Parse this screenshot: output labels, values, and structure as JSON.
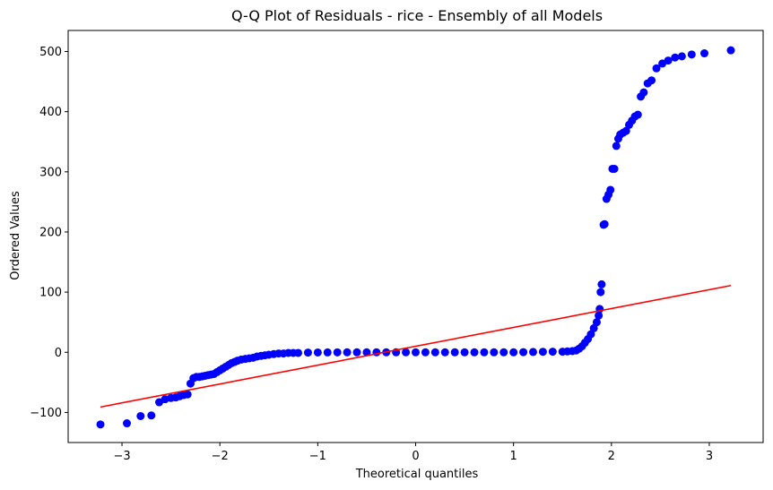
{
  "chart_data": {
    "type": "scatter",
    "title": "Q-Q Plot of Residuals - rice  - Ensembly of all Models",
    "xlabel": "Theoretical quantiles",
    "ylabel": "Ordered Values",
    "xlim": [
      -3.55,
      3.55
    ],
    "ylim": [
      -150,
      535
    ],
    "xticks": [
      -3,
      -2,
      -1,
      0,
      1,
      2,
      3
    ],
    "xtick_labels": [
      "−3",
      "−2",
      "−1",
      "0",
      "1",
      "2",
      "3"
    ],
    "yticks": [
      -100,
      0,
      100,
      200,
      300,
      400,
      500
    ],
    "ytick_labels": [
      "−100",
      "0",
      "100",
      "200",
      "300",
      "400",
      "500"
    ],
    "grid": false,
    "legend": false,
    "colors": {
      "points": "#0000ff",
      "fit_line": "#ff0000"
    },
    "series": [
      {
        "type": "scatter",
        "points": [
          [
            -3.22,
            -120
          ],
          [
            -2.95,
            -118
          ],
          [
            -2.81,
            -106
          ],
          [
            -2.7,
            -105
          ],
          [
            -2.62,
            -83
          ],
          [
            -2.56,
            -78
          ],
          [
            -2.5,
            -76
          ],
          [
            -2.45,
            -75
          ],
          [
            -2.41,
            -73
          ],
          [
            -2.37,
            -71
          ],
          [
            -2.33,
            -70
          ],
          [
            -2.3,
            -52
          ],
          [
            -2.27,
            -43
          ],
          [
            -2.24,
            -41
          ],
          [
            -2.21,
            -41
          ],
          [
            -2.18,
            -40
          ],
          [
            -2.15,
            -39
          ],
          [
            -2.12,
            -38
          ],
          [
            -2.09,
            -37
          ],
          [
            -2.06,
            -36
          ],
          [
            -2.03,
            -33
          ],
          [
            -2.0,
            -30
          ],
          [
            -1.97,
            -27
          ],
          [
            -1.94,
            -24
          ],
          [
            -1.91,
            -21
          ],
          [
            -1.88,
            -18
          ],
          [
            -1.85,
            -16
          ],
          [
            -1.82,
            -14
          ],
          [
            -1.78,
            -12
          ],
          [
            -1.74,
            -11
          ],
          [
            -1.7,
            -10
          ],
          [
            -1.66,
            -9
          ],
          [
            -1.62,
            -7
          ],
          [
            -1.58,
            -6
          ],
          [
            -1.54,
            -5
          ],
          [
            -1.5,
            -4
          ],
          [
            -1.45,
            -3
          ],
          [
            -1.4,
            -2
          ],
          [
            -1.35,
            -2
          ],
          [
            -1.3,
            -1
          ],
          [
            -1.25,
            -1
          ],
          [
            -1.2,
            -1
          ],
          [
            -1.1,
            -0.5
          ],
          [
            -1.0,
            -0.3
          ],
          [
            -0.9,
            -0.2
          ],
          [
            -0.8,
            -0.1
          ],
          [
            -0.7,
            0
          ],
          [
            -0.6,
            0
          ],
          [
            -0.5,
            0
          ],
          [
            -0.4,
            0
          ],
          [
            -0.3,
            0
          ],
          [
            -0.2,
            0
          ],
          [
            -0.1,
            0
          ],
          [
            0,
            0
          ],
          [
            0.1,
            0
          ],
          [
            0.2,
            0
          ],
          [
            0.3,
            0
          ],
          [
            0.4,
            0
          ],
          [
            0.5,
            0
          ],
          [
            0.6,
            0
          ],
          [
            0.7,
            0
          ],
          [
            0.8,
            0
          ],
          [
            0.9,
            0
          ],
          [
            1.0,
            0
          ],
          [
            1.1,
            0.3
          ],
          [
            1.2,
            0.5
          ],
          [
            1.3,
            0.8
          ],
          [
            1.4,
            1
          ],
          [
            1.5,
            1
          ],
          [
            1.55,
            1.5
          ],
          [
            1.6,
            2
          ],
          [
            1.64,
            3
          ],
          [
            1.67,
            6
          ],
          [
            1.7,
            10
          ],
          [
            1.73,
            16
          ],
          [
            1.76,
            22
          ],
          [
            1.79,
            30
          ],
          [
            1.82,
            40
          ],
          [
            1.85,
            50
          ],
          [
            1.87,
            61
          ],
          [
            1.88,
            72
          ],
          [
            1.89,
            100
          ],
          [
            1.9,
            113
          ],
          [
            1.92,
            212
          ],
          [
            1.93,
            213
          ],
          [
            1.95,
            255
          ],
          [
            1.97,
            262
          ],
          [
            1.99,
            270
          ],
          [
            2.01,
            305
          ],
          [
            2.03,
            305
          ],
          [
            2.05,
            343
          ],
          [
            2.07,
            355
          ],
          [
            2.09,
            362
          ],
          [
            2.12,
            365
          ],
          [
            2.15,
            368
          ],
          [
            2.18,
            378
          ],
          [
            2.21,
            385
          ],
          [
            2.24,
            392
          ],
          [
            2.27,
            395
          ],
          [
            2.3,
            425
          ],
          [
            2.33,
            432
          ],
          [
            2.37,
            447
          ],
          [
            2.41,
            452
          ],
          [
            2.46,
            472
          ],
          [
            2.52,
            480
          ],
          [
            2.58,
            485
          ],
          [
            2.65,
            490
          ],
          [
            2.72,
            492
          ],
          [
            2.82,
            495
          ],
          [
            2.95,
            497
          ],
          [
            3.22,
            502
          ]
        ]
      },
      {
        "type": "line",
        "points": [
          [
            -3.22,
            -91
          ],
          [
            3.22,
            111
          ]
        ]
      }
    ]
  }
}
